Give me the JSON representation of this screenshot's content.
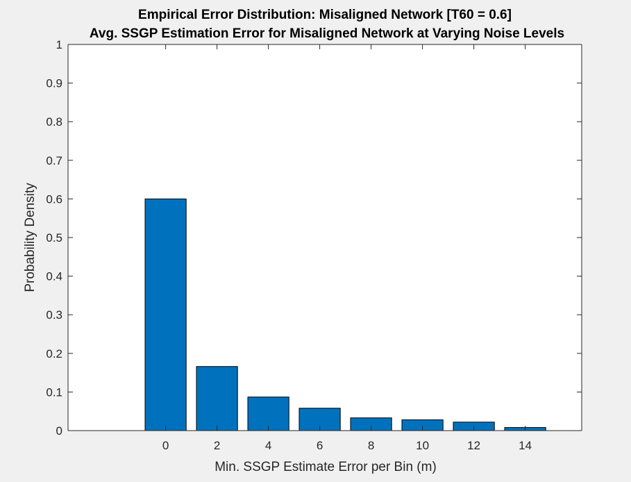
{
  "chart_data": {
    "type": "bar",
    "title": "Empirical Error Distribution: Misaligned Network [T60 = 0.6]",
    "subtitle": "Avg. SSGP Estimation Error for Misaligned Network at Varying Noise Levels",
    "xlabel": "Min. SSGP Estimate Error per Bin (m)",
    "ylabel": "Probability Density",
    "x": [
      0,
      2,
      4,
      6,
      8,
      10,
      12,
      14
    ],
    "values": [
      0.6,
      0.166,
      0.087,
      0.058,
      0.033,
      0.028,
      0.022,
      0.008
    ],
    "xlim": [
      -3.8,
      16.2
    ],
    "ylim": [
      0,
      1
    ],
    "xticks": [
      0,
      2,
      4,
      6,
      8,
      10,
      12,
      14
    ],
    "xtick_labels": [
      "0",
      "2",
      "4",
      "6",
      "8",
      "10",
      "12",
      "14"
    ],
    "yticks": [
      0,
      0.1,
      0.2,
      0.3,
      0.4,
      0.5,
      0.6,
      0.7,
      0.8,
      0.9,
      1
    ],
    "ytick_labels": [
      "0",
      "0.1",
      "0.2",
      "0.3",
      "0.4",
      "0.5",
      "0.6",
      "0.7",
      "0.8",
      "0.9",
      "1"
    ],
    "bar_color": "#0072bd",
    "bar_edge_color": "#000000",
    "grid": false,
    "legend": "none"
  },
  "colors": {
    "figure_background": "#f0f0f0",
    "axes_background": "#ffffff",
    "axis_color": "#262626"
  }
}
